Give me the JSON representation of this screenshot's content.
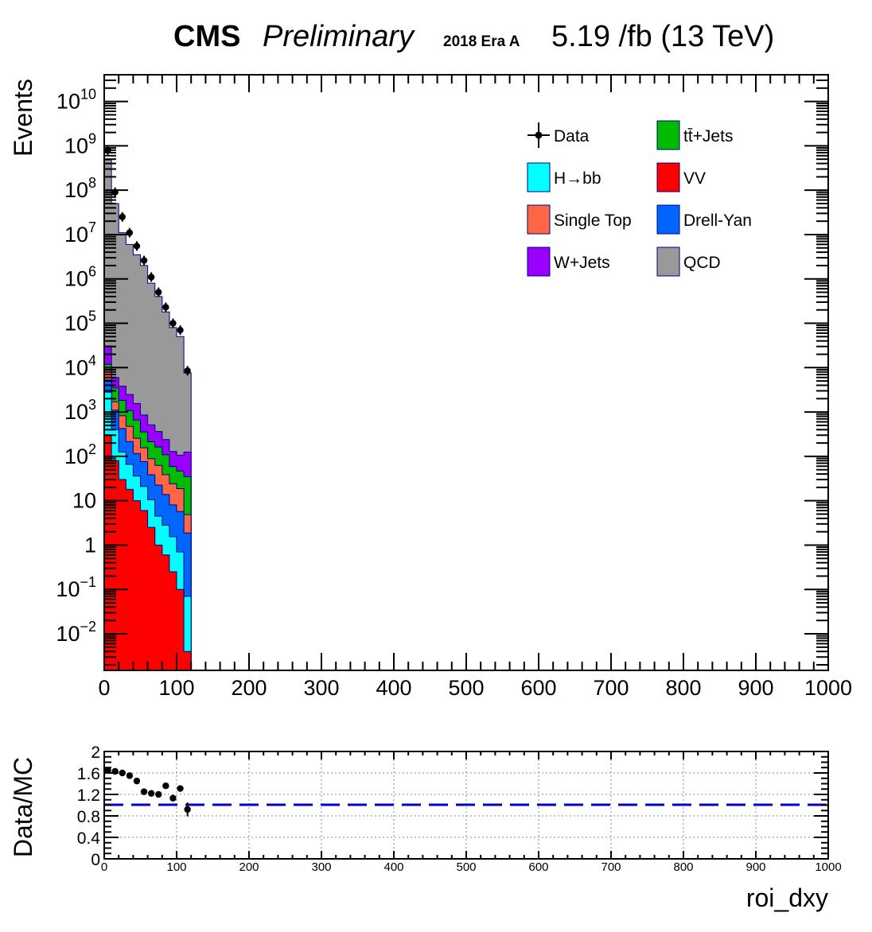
{
  "header": {
    "experiment": "CMS",
    "status": "Preliminary",
    "era": "2018 Era A",
    "lumi": "5.19 /fb (13 TeV)"
  },
  "chart_data": [
    {
      "type": "stacked-histogram",
      "ylabel": "Events",
      "xlim": [
        0,
        1000
      ],
      "ylim_log": [
        0.0015,
        40000000000
      ],
      "yscale": "log",
      "x_ticks": [
        "0",
        "100",
        "200",
        "300",
        "400",
        "500",
        "600",
        "700",
        "800",
        "900",
        "1000"
      ],
      "y_ticks": [
        {
          "value": 0.01,
          "base": "10",
          "exp": "−2"
        },
        {
          "value": 0.1,
          "base": "10",
          "exp": "−1"
        },
        {
          "value": 1,
          "base": "1",
          "exp": ""
        },
        {
          "value": 10,
          "base": "10",
          "exp": ""
        },
        {
          "value": 100,
          "base": "10",
          "exp": "2"
        },
        {
          "value": 1000,
          "base": "10",
          "exp": "3"
        },
        {
          "value": 10000,
          "base": "10",
          "exp": "4"
        },
        {
          "value": 100000,
          "base": "10",
          "exp": "5"
        },
        {
          "value": 1000000,
          "base": "10",
          "exp": "6"
        },
        {
          "value": 10000000,
          "base": "10",
          "exp": "7"
        },
        {
          "value": 100000000,
          "base": "10",
          "exp": "8"
        },
        {
          "value": 1000000000,
          "base": "10",
          "exp": "9"
        },
        {
          "value": 10000000000,
          "base": "10",
          "exp": "10"
        }
      ],
      "bin_edges": [
        0,
        10,
        20,
        30,
        40,
        50,
        60,
        70,
        80,
        90,
        100,
        110,
        120
      ],
      "stack": [
        {
          "name": "VV",
          "color": "#ff0000",
          "values": [
            300,
            80,
            30,
            18,
            10,
            6,
            2.5,
            1,
            0.6,
            0.25,
            0.1,
            0.004
          ]
        },
        {
          "name": "H→bb",
          "color": "#00ffff",
          "values": [
            2500,
            320,
            95,
            48,
            26,
            15,
            8,
            3.5,
            2.2,
            1.3,
            0.6,
            0.066
          ]
        },
        {
          "name": "Drell-Yan",
          "color": "#0066ff",
          "values": [
            2500,
            700,
            300,
            150,
            80,
            55,
            28,
            18,
            11,
            6.5,
            5,
            1.8
          ]
        },
        {
          "name": "Single Top",
          "color": "#ff6644",
          "values": [
            3500,
            600,
            400,
            260,
            140,
            80,
            50,
            40,
            25,
            16,
            13,
            3
          ]
        },
        {
          "name": "tt̄+Jets",
          "color": "#00bb00",
          "values": [
            3000,
            1800,
            1000,
            600,
            400,
            200,
            125,
            100,
            70,
            35,
            28,
            30
          ]
        },
        {
          "name": "W+Jets",
          "color": "#9900ff",
          "values": [
            19000,
            2500,
            2000,
            1400,
            900,
            500,
            300,
            200,
            130,
            70,
            60,
            90
          ]
        },
        {
          "name": "QCD",
          "color": "#999999",
          "values": [
            480000000,
            50000000,
            11000000,
            6000000,
            3500000,
            2000000,
            800000,
            400000,
            180000,
            80000,
            50000,
            7500
          ]
        }
      ],
      "data": {
        "name": "Data",
        "x": [
          5,
          15,
          25,
          35,
          45,
          55,
          65,
          75,
          85,
          95,
          105,
          115
        ],
        "y": [
          800000000,
          90000000,
          25000000,
          11000000,
          5500000,
          2600000,
          1100000,
          500000,
          230000,
          100000,
          70000,
          8500
        ]
      },
      "legend": {
        "position": "top-right",
        "entries": [
          {
            "name": "Data",
            "kind": "marker",
            "color": "#000000"
          },
          {
            "name": "tt̄+Jets",
            "kind": "box",
            "color": "#00bb00"
          },
          {
            "name": "H→bb",
            "kind": "box",
            "color": "#00ffff"
          },
          {
            "name": "VV",
            "kind": "box",
            "color": "#ff0000"
          },
          {
            "name": "Single Top",
            "kind": "box",
            "color": "#ff6644"
          },
          {
            "name": "Drell-Yan",
            "kind": "box",
            "color": "#0066ff"
          },
          {
            "name": "W+Jets",
            "kind": "box",
            "color": "#9900ff"
          },
          {
            "name": "QCD",
            "kind": "box",
            "color": "#999999"
          }
        ]
      }
    },
    {
      "type": "scatter",
      "xlabel": "roi_dxy",
      "ylabel": "Data/MC",
      "xlim": [
        0,
        1000
      ],
      "ylim": [
        0,
        2
      ],
      "grid": true,
      "x_ticks": [
        "0",
        "100",
        "200",
        "300",
        "400",
        "500",
        "600",
        "700",
        "800",
        "900",
        "1000"
      ],
      "y_ticks": [
        "0",
        "0.4",
        "0.8",
        "1.2",
        "1.6",
        "2"
      ],
      "reference_line": {
        "y": 1.0,
        "color": "#0000cc",
        "style": "dashed"
      },
      "points": {
        "x": [
          5,
          15,
          25,
          35,
          45,
          55,
          65,
          75,
          85,
          95,
          105,
          115
        ],
        "y": [
          1.65,
          1.63,
          1.6,
          1.55,
          1.45,
          1.25,
          1.22,
          1.2,
          1.36,
          1.13,
          1.31,
          0.92
        ],
        "yerr": [
          0.0,
          0.0,
          0.0,
          0.0,
          0.0,
          0.0,
          0.0,
          0.0,
          0.0,
          0.0,
          0.0,
          0.13
        ]
      }
    }
  ]
}
